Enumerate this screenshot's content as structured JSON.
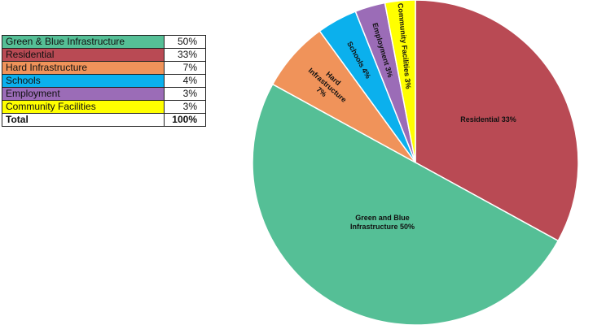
{
  "chart_data": {
    "type": "pie",
    "title": "",
    "categories": [
      "Green & Blue Infrastructure",
      "Residential",
      "Hard Infrastructure",
      "Schools",
      "Employment",
      "Community Facilities"
    ],
    "values": [
      50,
      33,
      7,
      4,
      3,
      3
    ],
    "value_labels": [
      "50%",
      "33%",
      "7%",
      "4%",
      "3%",
      "3%"
    ],
    "colors": [
      "#55bf96",
      "#b94a54",
      "#f0935a",
      "#0bb0ed",
      "#9b6cb7",
      "#ffff00"
    ],
    "slice_labels": [
      [
        "Green and Blue",
        "Infrastructure 50%"
      ],
      [
        "Residential 33%"
      ],
      [
        "Hard",
        "Infrastructure",
        "7%"
      ],
      [
        "Schools 4%"
      ],
      [
        "Employment 3%"
      ],
      [
        "Community Facilities 3%"
      ]
    ],
    "total_label": "Total",
    "total_value": "100%",
    "legend_placement": "top-left table"
  }
}
